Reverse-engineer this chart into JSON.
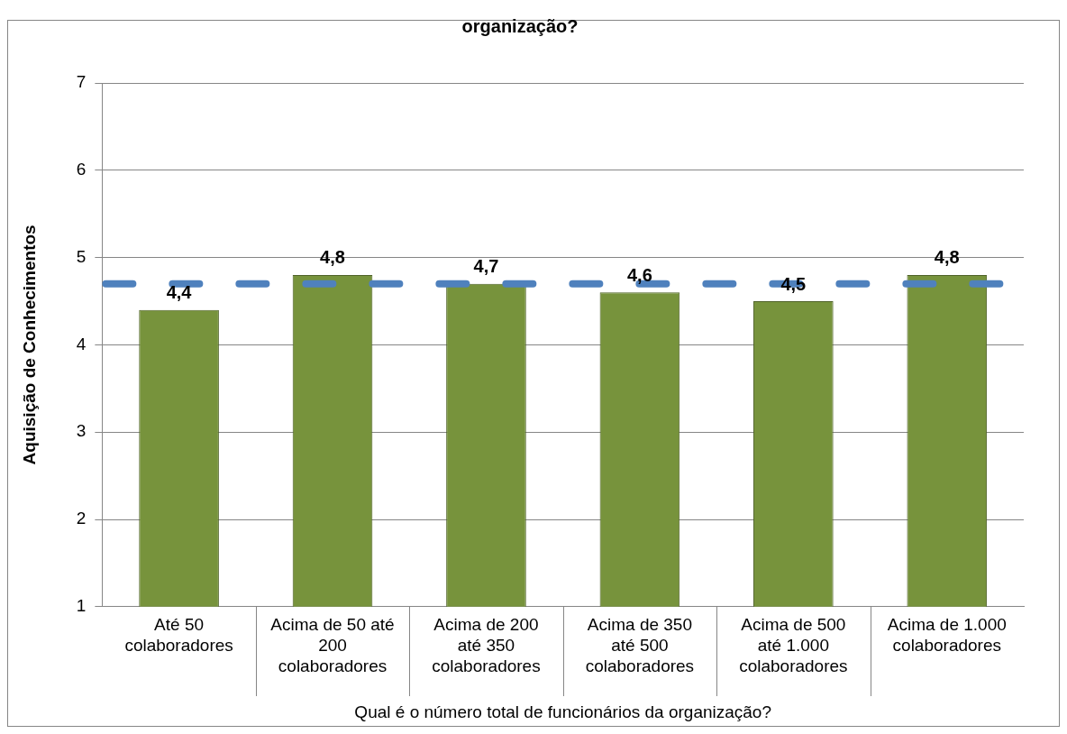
{
  "chart_data": {
    "type": "bar",
    "title": "organização?",
    "xlabel": "Qual é o número total de funcionários da organização?",
    "ylabel": "Aquisição de Conhecimentos",
    "categories": [
      "Até 50 colaboradores",
      "Acima de 50 até 200 colaboradores",
      "Acima de 200 até 350 colaboradores",
      "Acima de 350 até 500 colaboradores",
      "Acima de 500 até 1.000 colaboradores",
      "Acima de 1.000 colaboradores"
    ],
    "values": [
      4.4,
      4.8,
      4.7,
      4.6,
      4.5,
      4.8
    ],
    "color": "#77933c",
    "value_labels": [
      "4,4",
      "4,8",
      "4,7",
      "4,6",
      "4,5",
      "4,8"
    ],
    "ylim": [
      1,
      7
    ],
    "yticks": [
      1,
      2,
      3,
      4,
      5,
      6,
      7
    ],
    "grid": "y",
    "ref_lines": [
      {
        "axis": "y",
        "value": 4.7,
        "color": "#4f81bd",
        "line_style": "dashed"
      }
    ]
  }
}
